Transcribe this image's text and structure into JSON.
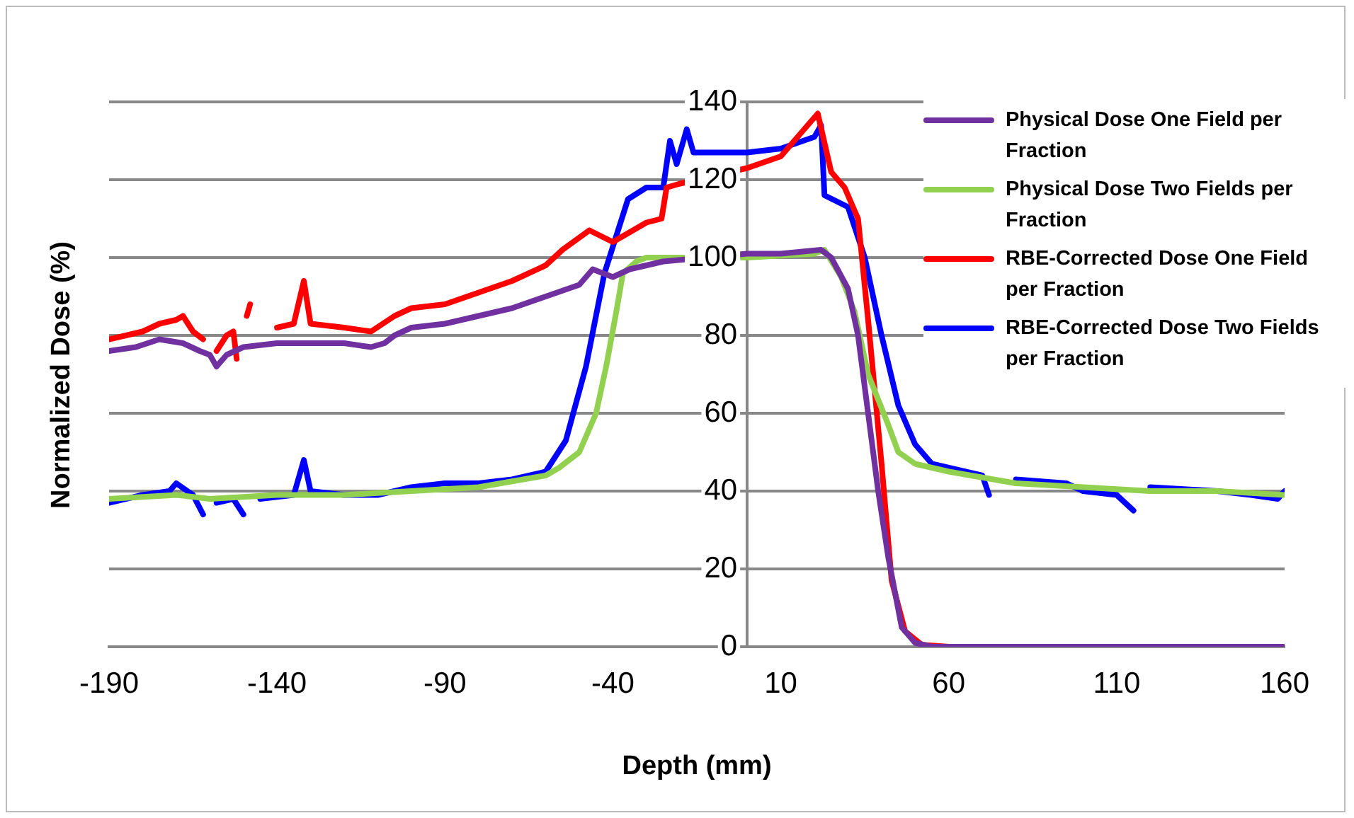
{
  "chart_data": {
    "type": "line",
    "xlabel": "Depth (mm)",
    "ylabel": "Normalized Dose (%)",
    "xlim": [
      -190,
      160
    ],
    "xticks": [
      -190,
      -140,
      -90,
      -40,
      10,
      60,
      110,
      160
    ],
    "ylim": [
      0,
      140
    ],
    "yticks": [
      0,
      20,
      40,
      60,
      80,
      100,
      120,
      140
    ],
    "grid": "y",
    "legend": "top right",
    "marker": "none",
    "line_style": "solid",
    "series": [
      {
        "name": "Physical Dose One Field per Fraction",
        "color": "#7030a0",
        "x": [
          -190,
          -182,
          -175,
          -168,
          -163,
          -160,
          -158,
          -155,
          -150,
          -140,
          -130,
          -120,
          -112,
          -108,
          -105,
          -100,
          -90,
          -80,
          -70,
          -60,
          -50,
          -46,
          -40,
          -35,
          -25,
          0,
          10,
          22,
          25,
          30,
          33,
          36,
          39,
          42,
          46,
          50,
          55,
          60,
          100,
          160
        ],
        "values": [
          76,
          77,
          79,
          78,
          76,
          75,
          72,
          75,
          77,
          78,
          78,
          78,
          77,
          78,
          80,
          82,
          83,
          85,
          87,
          90,
          93,
          97,
          95,
          97,
          99,
          101,
          101,
          102,
          100,
          92,
          80,
          60,
          40,
          23,
          5,
          1,
          0,
          0,
          0,
          0
        ]
      },
      {
        "name": "Physical Dose Two Fields per Fraction",
        "color": "#92d050",
        "x": [
          -190,
          -170,
          -160,
          -140,
          -120,
          -100,
          -80,
          -60,
          -56,
          -50,
          -45,
          -42,
          -39,
          -37,
          -33,
          -30,
          -20,
          0,
          20,
          23,
          28,
          32,
          36,
          42,
          45,
          50,
          60,
          80,
          100,
          120,
          140,
          160
        ],
        "values": [
          38,
          39,
          38,
          39,
          39,
          40,
          41,
          44,
          46,
          50,
          60,
          72,
          86,
          96,
          99,
          100,
          100,
          100,
          101,
          102,
          95,
          86,
          70,
          57,
          50,
          47,
          45,
          42,
          41,
          40,
          40,
          39
        ]
      },
      {
        "name": "RBE-Corrected Dose One Field per Fraction",
        "color": "#ff0000",
        "x": [
          -190,
          -180,
          -175,
          -170,
          -168,
          -165,
          -162,
          -160,
          -158,
          -155,
          -153,
          -152,
          -150,
          -149,
          -148,
          -145,
          -140,
          -135,
          -132,
          -130,
          -120,
          -112,
          -105,
          -100,
          -90,
          -80,
          -70,
          -60,
          -55,
          -47,
          -40,
          -30,
          -25.5,
          -24,
          -20,
          0,
          10,
          21,
          25,
          29,
          33,
          36,
          40,
          43,
          47,
          52,
          60,
          100,
          160
        ],
        "values": [
          79,
          81,
          83,
          84,
          85,
          81,
          79,
          null,
          76,
          80,
          81,
          74,
          null,
          85,
          88,
          null,
          82,
          83,
          94,
          83,
          82,
          81,
          85,
          87,
          88,
          91,
          94,
          98,
          102,
          107,
          104,
          109,
          110,
          118,
          119,
          123,
          126,
          137,
          122,
          118,
          110,
          84,
          47,
          17,
          4,
          0.5,
          0,
          0,
          0
        ]
      },
      {
        "name": "RBE-Corrected Dose Two Fields per Fraction",
        "color": "#0000ff",
        "x": [
          -190,
          -180,
          -172,
          -170,
          -165,
          -162,
          -160,
          -158,
          -153,
          -150,
          -149,
          -145,
          -135,
          -132,
          -130,
          -120,
          -110,
          -100,
          -90,
          -80,
          -70,
          -60,
          -54,
          -48,
          -42.5,
          -35.5,
          -30,
          -25,
          -23,
          -21,
          -18,
          -16,
          -10,
          0,
          10,
          20,
          22,
          23,
          30,
          35,
          40,
          45,
          50,
          55,
          60,
          70,
          72,
          73,
          80,
          95,
          100,
          110,
          115,
          116,
          120,
          140,
          150,
          158,
          160
        ],
        "values": [
          37,
          39,
          40,
          42,
          39,
          34,
          null,
          37,
          38,
          34,
          null,
          38,
          39,
          48,
          40,
          39,
          39,
          41,
          42,
          42,
          43,
          45,
          53,
          72,
          96,
          115,
          118,
          118,
          130,
          124,
          133,
          127,
          127,
          127,
          128,
          131,
          134,
          116,
          113,
          100,
          80,
          62,
          52,
          47,
          46,
          44,
          39,
          null,
          43,
          42,
          40,
          39,
          35,
          null,
          41,
          40,
          39,
          38,
          40
        ]
      }
    ]
  }
}
